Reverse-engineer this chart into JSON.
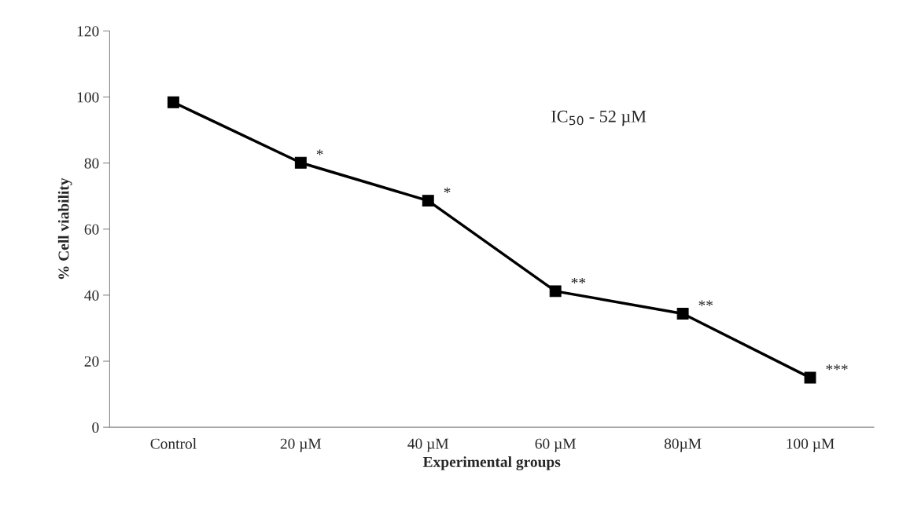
{
  "chart_data": {
    "type": "line",
    "xlabel": "Experimental groups",
    "ylabel": "% Cell viability",
    "categories": [
      "Control",
      "20 µM",
      "40 µM",
      "60 µM",
      "80µM",
      "100 µM"
    ],
    "series": [
      {
        "color": "#000000",
        "values": [
          98.4,
          80.1,
          68.6,
          41.2,
          34.4,
          15.0
        ]
      }
    ],
    "ylim": [
      0,
      120
    ],
    "yticks": [
      0,
      20,
      40,
      60,
      80,
      100,
      120
    ],
    "grid": false,
    "legend": false,
    "marker": "square",
    "line_style": "solid",
    "annotations": [
      {
        "text": "*",
        "x": "20 µM",
        "y": 80.1
      },
      {
        "text": "*",
        "x": "40 µM",
        "y": 68.6
      },
      {
        "text": "**",
        "x": "60 µM",
        "y": 41.2
      },
      {
        "text": "**",
        "x": "80µM",
        "y": 34.4
      },
      {
        "text": "***",
        "x": "100 µM",
        "y": 15.0
      },
      "IC$_{50}$ - 52 µM"
    ]
  }
}
